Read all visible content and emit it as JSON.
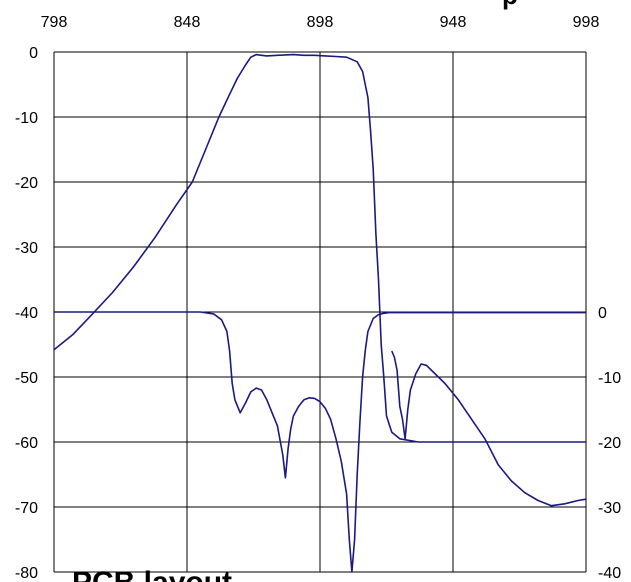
{
  "chart_data": {
    "type": "line",
    "title_fragment": "p",
    "footer_fragment": "PCB layout",
    "x_ticks": [
      "798",
      "848",
      "898",
      "948",
      "998"
    ],
    "y_left_ticks": [
      "0",
      "-10",
      "-20",
      "-30",
      "-40",
      "-50",
      "-60",
      "-70",
      "-80"
    ],
    "y_right_ticks": [
      "0",
      "-10",
      "-20",
      "-30",
      "-40"
    ],
    "xlim": [
      798,
      998
    ],
    "ylim_left": [
      -80,
      0
    ],
    "ylim_right": [
      -40,
      0
    ],
    "grid": true,
    "line_color": "#1a1a80",
    "series": [
      {
        "axis": "left",
        "x": [
          798,
          805,
          812,
          820,
          828,
          836,
          844,
          850,
          855,
          860,
          864,
          867,
          870,
          872,
          874,
          876,
          878,
          882,
          888,
          892,
          896,
          900,
          904,
          908,
          912,
          914,
          916,
          917,
          918,
          919,
          920,
          921,
          922,
          923,
          925,
          928,
          935,
          945,
          960,
          980,
          998
        ],
        "y": [
          -45.8,
          -43.5,
          -40.5,
          -37,
          -33,
          -28.5,
          -23.5,
          -20,
          -15,
          -10,
          -6.5,
          -4,
          -2,
          -0.8,
          -0.4,
          -0.5,
          -0.6,
          -0.5,
          -0.4,
          -0.5,
          -0.5,
          -0.6,
          -0.7,
          -0.8,
          -1.5,
          -3,
          -7,
          -12,
          -18,
          -28,
          -35,
          -45,
          -50,
          -56,
          -58.5,
          -59.5,
          -60,
          -60,
          -60,
          -60,
          -60
        ]
      },
      {
        "axis": "right",
        "x": [
          798,
          820,
          848,
          853,
          858,
          861,
          863,
          864,
          865,
          866,
          868,
          870,
          872,
          874,
          876,
          878,
          880,
          882,
          884,
          885,
          886,
          887,
          888,
          890,
          892,
          894,
          896,
          898,
          900,
          902,
          904,
          906,
          908,
          909,
          910,
          911,
          912,
          913,
          914,
          915,
          916,
          918,
          920,
          922,
          924,
          925,
          926,
          927,
          928,
          930,
          932,
          934,
          936,
          938,
          940,
          945,
          950,
          955,
          960,
          965,
          970,
          975,
          980,
          985,
          990,
          995,
          998
        ],
        "y": [
          0,
          0,
          0,
          0,
          -0.3,
          -1.2,
          -3,
          -6,
          -11,
          -13.5,
          -15.5,
          -14,
          -12.3,
          -11.7,
          -12,
          -13.5,
          -15.5,
          -17.5,
          -22,
          -25.5,
          -21,
          -18,
          -16,
          -14.5,
          -13.5,
          -13.2,
          -13.3,
          -13.8,
          -14.8,
          -16.5,
          -19.5,
          -23,
          -28,
          -35,
          -40,
          -35,
          -25,
          -17,
          -10,
          -6,
          -3,
          -1,
          -0.4,
          -0.2,
          -0.1,
          -0.1,
          -0.1,
          -0.1,
          -0.1,
          -0.1,
          -0.1,
          -0.1,
          -0.1,
          -0.1,
          -0.1,
          -0.1,
          -0.1,
          -0.1,
          -0.1,
          -0.1,
          -0.1,
          -0.1,
          -0.1,
          -0.1,
          -0.1,
          -0.1,
          -0.1
        ]
      },
      {
        "axis": "right",
        "x": [
          925,
          926,
          927,
          928,
          929,
          930,
          931,
          932,
          934,
          936,
          938,
          940,
          945,
          950,
          955,
          960,
          965,
          970,
          975,
          980,
          985,
          990,
          995,
          998
        ],
        "y": [
          -6,
          -7,
          -9,
          -14.5,
          -16.5,
          -19.5,
          -15,
          -12,
          -9.5,
          -8,
          -8.2,
          -9,
          -11,
          -13.5,
          -16.5,
          -19.5,
          -23.5,
          -26,
          -27.8,
          -29,
          -29.8,
          -29.5,
          -29,
          -28.8
        ]
      }
    ]
  }
}
